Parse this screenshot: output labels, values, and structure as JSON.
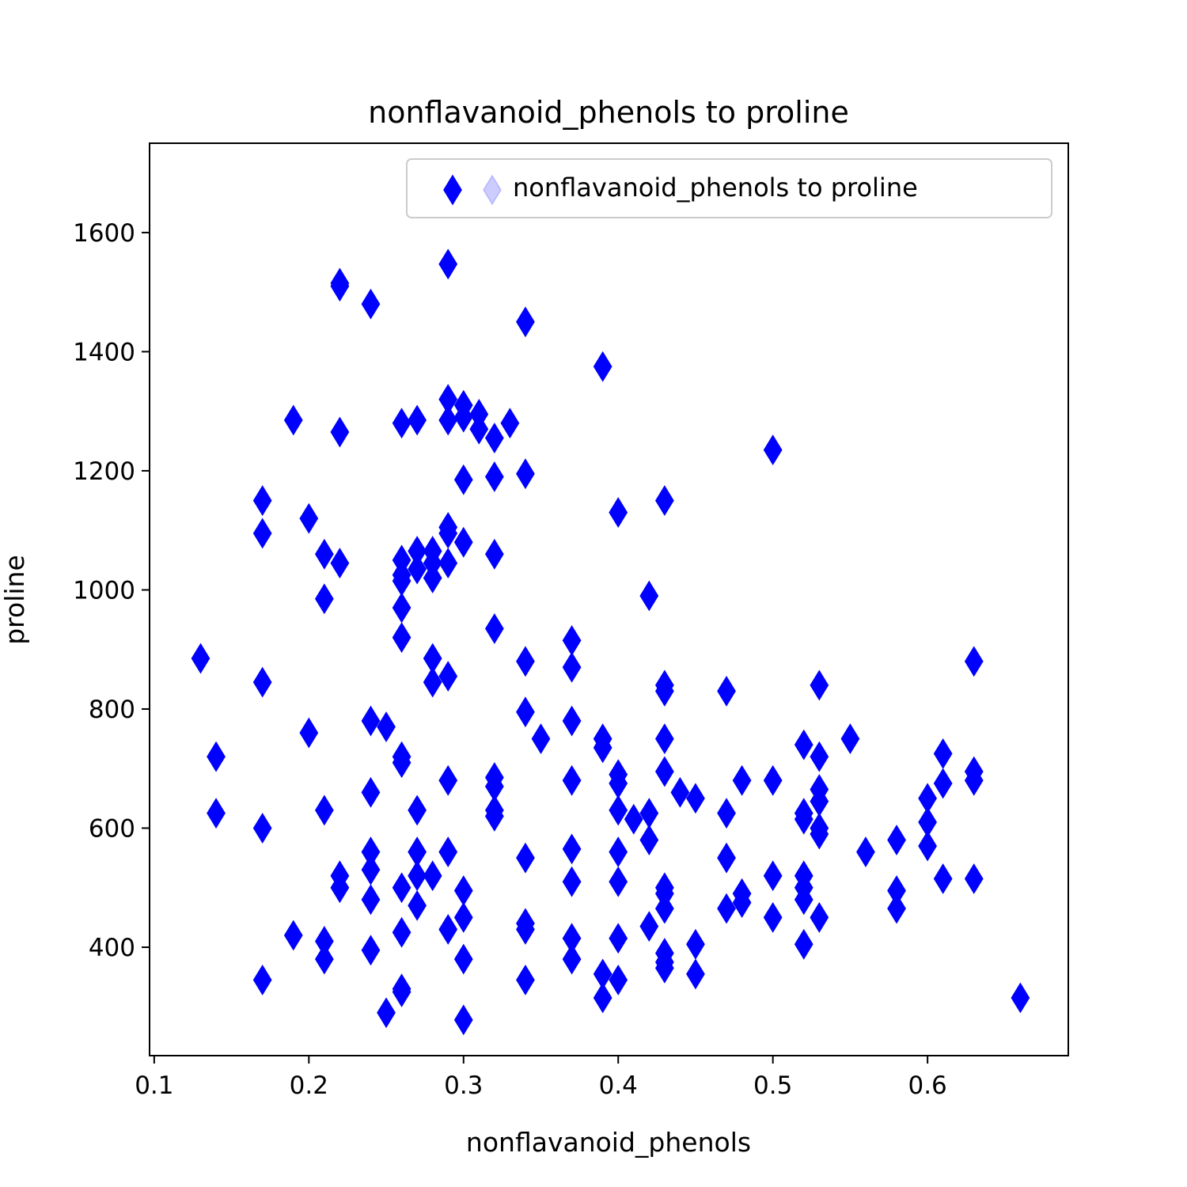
{
  "chart_data": {
    "type": "scatter",
    "title": "nonflavanoid_phenols to proline",
    "xlabel": "nonflavanoid_phenols",
    "ylabel": "proline",
    "xlim": [
      0.097,
      0.691
    ],
    "ylim": [
      218,
      1750
    ],
    "xticks": [
      0.1,
      0.2,
      0.3,
      0.4,
      0.5,
      0.6
    ],
    "xtick_labels": [
      "0.1",
      "0.2",
      "0.3",
      "0.4",
      "0.5",
      "0.6"
    ],
    "yticks": [
      400,
      600,
      800,
      1000,
      1200,
      1400,
      1600
    ],
    "ytick_labels": [
      "400",
      "600",
      "800",
      "1000",
      "1200",
      "1400",
      "1600"
    ],
    "grid": false,
    "legend": {
      "position": "top-right",
      "entries": [
        "nonflavanoid_phenols to proline"
      ]
    },
    "marker": "thin-diamond",
    "color": "#0000ff",
    "series": [
      {
        "name": "nonflavanoid_phenols to proline",
        "points": [
          [
            0.29,
            1547
          ],
          [
            0.22,
            1515
          ],
          [
            0.22,
            1510
          ],
          [
            0.24,
            1480
          ],
          [
            0.34,
            1450
          ],
          [
            0.39,
            1375
          ],
          [
            0.29,
            1320
          ],
          [
            0.3,
            1310
          ],
          [
            0.31,
            1295
          ],
          [
            0.29,
            1285
          ],
          [
            0.19,
            1285
          ],
          [
            0.26,
            1280
          ],
          [
            0.27,
            1285
          ],
          [
            0.3,
            1290
          ],
          [
            0.31,
            1270
          ],
          [
            0.33,
            1280
          ],
          [
            0.32,
            1255
          ],
          [
            0.22,
            1265
          ],
          [
            0.5,
            1235
          ],
          [
            0.34,
            1195
          ],
          [
            0.32,
            1190
          ],
          [
            0.3,
            1185
          ],
          [
            0.17,
            1150
          ],
          [
            0.43,
            1150
          ],
          [
            0.4,
            1130
          ],
          [
            0.2,
            1120
          ],
          [
            0.17,
            1095
          ],
          [
            0.29,
            1105
          ],
          [
            0.29,
            1095
          ],
          [
            0.3,
            1080
          ],
          [
            0.21,
            1060
          ],
          [
            0.22,
            1045
          ],
          [
            0.27,
            1065
          ],
          [
            0.28,
            1065
          ],
          [
            0.26,
            1050
          ],
          [
            0.27,
            1035
          ],
          [
            0.28,
            1045
          ],
          [
            0.29,
            1045
          ],
          [
            0.26,
            1025
          ],
          [
            0.28,
            1020
          ],
          [
            0.32,
            1060
          ],
          [
            0.26,
            1015
          ],
          [
            0.21,
            985
          ],
          [
            0.42,
            990
          ],
          [
            0.26,
            970
          ],
          [
            0.32,
            935
          ],
          [
            0.26,
            920
          ],
          [
            0.37,
            915
          ],
          [
            0.13,
            885
          ],
          [
            0.28,
            885
          ],
          [
            0.34,
            880
          ],
          [
            0.37,
            870
          ],
          [
            0.28,
            845
          ],
          [
            0.29,
            855
          ],
          [
            0.17,
            845
          ],
          [
            0.43,
            840
          ],
          [
            0.43,
            830
          ],
          [
            0.47,
            830
          ],
          [
            0.53,
            840
          ],
          [
            0.63,
            880
          ],
          [
            0.34,
            795
          ],
          [
            0.24,
            780
          ],
          [
            0.25,
            770
          ],
          [
            0.37,
            780
          ],
          [
            0.2,
            760
          ],
          [
            0.35,
            750
          ],
          [
            0.39,
            750
          ],
          [
            0.39,
            735
          ],
          [
            0.43,
            750
          ],
          [
            0.52,
            740
          ],
          [
            0.55,
            750
          ],
          [
            0.14,
            720
          ],
          [
            0.26,
            720
          ],
          [
            0.26,
            710
          ],
          [
            0.53,
            720
          ],
          [
            0.61,
            725
          ],
          [
            0.43,
            695
          ],
          [
            0.63,
            695
          ],
          [
            0.4,
            690
          ],
          [
            0.4,
            675
          ],
          [
            0.29,
            680
          ],
          [
            0.32,
            685
          ],
          [
            0.32,
            670
          ],
          [
            0.37,
            680
          ],
          [
            0.48,
            680
          ],
          [
            0.5,
            680
          ],
          [
            0.61,
            675
          ],
          [
            0.63,
            680
          ],
          [
            0.24,
            660
          ],
          [
            0.44,
            660
          ],
          [
            0.45,
            650
          ],
          [
            0.53,
            665
          ],
          [
            0.53,
            645
          ],
          [
            0.6,
            650
          ],
          [
            0.14,
            625
          ],
          [
            0.21,
            630
          ],
          [
            0.27,
            630
          ],
          [
            0.32,
            630
          ],
          [
            0.32,
            620
          ],
          [
            0.4,
            630
          ],
          [
            0.41,
            615
          ],
          [
            0.42,
            625
          ],
          [
            0.47,
            625
          ],
          [
            0.52,
            625
          ],
          [
            0.52,
            615
          ],
          [
            0.6,
            610
          ],
          [
            0.17,
            600
          ],
          [
            0.53,
            600
          ],
          [
            0.53,
            590
          ],
          [
            0.42,
            580
          ],
          [
            0.58,
            580
          ],
          [
            0.6,
            570
          ],
          [
            0.24,
            560
          ],
          [
            0.27,
            560
          ],
          [
            0.29,
            560
          ],
          [
            0.37,
            565
          ],
          [
            0.4,
            560
          ],
          [
            0.56,
            560
          ],
          [
            0.24,
            530
          ],
          [
            0.27,
            520
          ],
          [
            0.28,
            520
          ],
          [
            0.34,
            550
          ],
          [
            0.47,
            550
          ],
          [
            0.22,
            520
          ],
          [
            0.22,
            500
          ],
          [
            0.26,
            500
          ],
          [
            0.3,
            495
          ],
          [
            0.37,
            510
          ],
          [
            0.4,
            510
          ],
          [
            0.43,
            500
          ],
          [
            0.43,
            490
          ],
          [
            0.5,
            520
          ],
          [
            0.52,
            520
          ],
          [
            0.52,
            500
          ],
          [
            0.58,
            495
          ],
          [
            0.61,
            515
          ],
          [
            0.63,
            515
          ],
          [
            0.24,
            480
          ],
          [
            0.27,
            470
          ],
          [
            0.3,
            450
          ],
          [
            0.43,
            465
          ],
          [
            0.47,
            465
          ],
          [
            0.48,
            490
          ],
          [
            0.48,
            475
          ],
          [
            0.5,
            450
          ],
          [
            0.52,
            480
          ],
          [
            0.53,
            450
          ],
          [
            0.58,
            465
          ],
          [
            0.19,
            420
          ],
          [
            0.21,
            410
          ],
          [
            0.26,
            425
          ],
          [
            0.29,
            430
          ],
          [
            0.34,
            440
          ],
          [
            0.34,
            430
          ],
          [
            0.37,
            415
          ],
          [
            0.4,
            415
          ],
          [
            0.42,
            435
          ],
          [
            0.43,
            390
          ],
          [
            0.45,
            405
          ],
          [
            0.52,
            405
          ],
          [
            0.21,
            380
          ],
          [
            0.24,
            395
          ],
          [
            0.3,
            380
          ],
          [
            0.37,
            380
          ],
          [
            0.43,
            375
          ],
          [
            0.43,
            365
          ],
          [
            0.17,
            345
          ],
          [
            0.26,
            330
          ],
          [
            0.26,
            325
          ],
          [
            0.34,
            345
          ],
          [
            0.39,
            355
          ],
          [
            0.4,
            345
          ],
          [
            0.45,
            355
          ],
          [
            0.39,
            315
          ],
          [
            0.25,
            290
          ],
          [
            0.3,
            278
          ],
          [
            0.66,
            315
          ]
        ]
      }
    ]
  }
}
